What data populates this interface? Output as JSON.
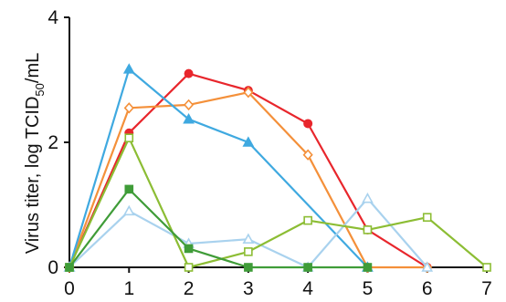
{
  "chart_data": {
    "type": "line",
    "title": "",
    "xlabel": "",
    "ylabel": {
      "main": "Virus titer, log TCID",
      "sub": "50",
      "unit": "/mL"
    },
    "xlim": [
      0,
      7
    ],
    "ylim": [
      0,
      4
    ],
    "x_ticks": [
      "0",
      "1",
      "2",
      "3",
      "4",
      "5",
      "6",
      "7"
    ],
    "y_ticks": [
      "0",
      "2",
      "4"
    ],
    "grid": false,
    "series": [
      {
        "color": "#e8262c",
        "marker": "circle",
        "filled": true,
        "x": [
          0,
          1,
          2,
          3,
          4,
          5,
          6
        ],
        "values": [
          0,
          2.15,
          3.1,
          2.83,
          2.3,
          0.6,
          0
        ]
      },
      {
        "color": "#f4903a",
        "marker": "diamond",
        "filled": false,
        "x": [
          0,
          1,
          2,
          3,
          4,
          5,
          6
        ],
        "values": [
          0,
          2.55,
          2.6,
          2.8,
          1.8,
          0,
          0
        ]
      },
      {
        "color": "#3fa9e0",
        "marker": "triangle",
        "filled": true,
        "x": [
          0,
          1,
          2,
          3,
          5
        ],
        "values": [
          0,
          3.17,
          2.37,
          2.0,
          0
        ]
      },
      {
        "color": "#a9d2ee",
        "marker": "triangle",
        "filled": false,
        "x": [
          0,
          1,
          2,
          3,
          4,
          5,
          6
        ],
        "values": [
          0,
          0.9,
          0.38,
          0.45,
          0,
          1.1,
          0
        ]
      },
      {
        "color": "#8cbd34",
        "marker": "square",
        "filled": false,
        "x": [
          0,
          1,
          2,
          3,
          4,
          5,
          6,
          7
        ],
        "values": [
          0,
          2.07,
          0,
          0.25,
          0.75,
          0.6,
          0.8,
          0
        ]
      },
      {
        "color": "#3f9c38",
        "marker": "square",
        "filled": true,
        "x": [
          0,
          1,
          2,
          3,
          4,
          5
        ],
        "values": [
          0,
          1.25,
          0.3,
          0,
          0,
          0
        ]
      }
    ]
  }
}
